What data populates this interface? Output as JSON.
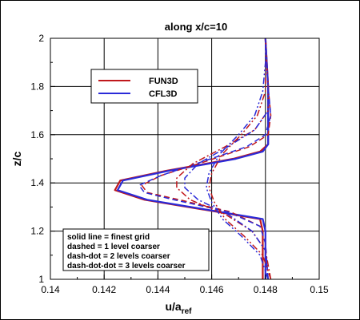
{
  "chart_data": {
    "type": "line",
    "title": "along x/c=10",
    "xlabel": "u/a",
    "xlabel_sub": "ref",
    "ylabel": "z/c",
    "xlim": [
      0.14,
      0.15
    ],
    "ylim": [
      1.0,
      2.0
    ],
    "xticks": [
      "0.14",
      "0.142",
      "0.144",
      "0.146",
      "0.148",
      "0.15"
    ],
    "yticks": [
      "1",
      "1.2",
      "1.4",
      "1.6",
      "1.8",
      "2"
    ],
    "grid": true,
    "legend_position": "upper-left",
    "legend": [
      {
        "name": "FUN3D",
        "color": "#c0181c"
      },
      {
        "name": "CFL3D",
        "color": "#2a2ad8"
      }
    ],
    "note": [
      "solid line = finest grid",
      "dashed = 1 level coarser",
      "dash-dot = 2 levels coarser",
      "dash-dot-dot = 3 levels coarser"
    ],
    "series": [
      {
        "code": "FUN3D",
        "grid": "finest",
        "style": "solid",
        "color": "#c0181c",
        "points": [
          [
            0.1479,
            1.0
          ],
          [
            0.1479,
            1.2
          ],
          [
            0.1478,
            1.25
          ],
          [
            0.1462,
            1.28
          ],
          [
            0.1435,
            1.33
          ],
          [
            0.1424,
            1.37
          ],
          [
            0.1426,
            1.41
          ],
          [
            0.1443,
            1.45
          ],
          [
            0.1468,
            1.5
          ],
          [
            0.1478,
            1.53
          ],
          [
            0.1481,
            1.56
          ],
          [
            0.1481,
            1.65
          ],
          [
            0.1481,
            1.8
          ],
          [
            0.148,
            2.0
          ]
        ]
      },
      {
        "code": "CFL3D",
        "grid": "finest",
        "style": "solid",
        "color": "#2a2ad8",
        "points": [
          [
            0.148,
            1.0
          ],
          [
            0.148,
            1.2
          ],
          [
            0.1479,
            1.25
          ],
          [
            0.1463,
            1.28
          ],
          [
            0.1436,
            1.33
          ],
          [
            0.1425,
            1.37
          ],
          [
            0.1427,
            1.41
          ],
          [
            0.1444,
            1.45
          ],
          [
            0.1469,
            1.5
          ],
          [
            0.1479,
            1.53
          ],
          [
            0.1481,
            1.56
          ],
          [
            0.1481,
            1.65
          ],
          [
            0.1481,
            1.8
          ],
          [
            0.148,
            2.0
          ]
        ]
      },
      {
        "code": "FUN3D",
        "grid": "1 level coarser",
        "style": "dashed",
        "color": "#c0181c",
        "points": [
          [
            0.1481,
            1.0
          ],
          [
            0.148,
            1.15
          ],
          [
            0.1478,
            1.22
          ],
          [
            0.1467,
            1.28
          ],
          [
            0.1448,
            1.33
          ],
          [
            0.1436,
            1.36
          ],
          [
            0.1434,
            1.39
          ],
          [
            0.1441,
            1.43
          ],
          [
            0.1458,
            1.49
          ],
          [
            0.1474,
            1.55
          ],
          [
            0.1481,
            1.6
          ],
          [
            0.1482,
            1.68
          ],
          [
            0.1481,
            1.8
          ],
          [
            0.148,
            2.0
          ]
        ]
      },
      {
        "code": "CFL3D",
        "grid": "1 level coarser",
        "style": "dashed",
        "color": "#2a2ad8",
        "points": [
          [
            0.1481,
            1.0
          ],
          [
            0.148,
            1.15
          ],
          [
            0.1478,
            1.22
          ],
          [
            0.1466,
            1.28
          ],
          [
            0.1446,
            1.33
          ],
          [
            0.1435,
            1.36
          ],
          [
            0.1433,
            1.39
          ],
          [
            0.1441,
            1.43
          ],
          [
            0.1457,
            1.49
          ],
          [
            0.1473,
            1.55
          ],
          [
            0.148,
            1.6
          ],
          [
            0.1482,
            1.68
          ],
          [
            0.1481,
            1.8
          ],
          [
            0.148,
            2.0
          ]
        ]
      },
      {
        "code": "FUN3D",
        "grid": "2 levels coarser",
        "style": "dashdot",
        "color": "#c0181c",
        "points": [
          [
            0.1482,
            1.0
          ],
          [
            0.148,
            1.12
          ],
          [
            0.1475,
            1.2
          ],
          [
            0.1465,
            1.27
          ],
          [
            0.1452,
            1.33
          ],
          [
            0.1447,
            1.38
          ],
          [
            0.1447,
            1.42
          ],
          [
            0.1453,
            1.48
          ],
          [
            0.1465,
            1.55
          ],
          [
            0.1476,
            1.62
          ],
          [
            0.1481,
            1.7
          ],
          [
            0.1481,
            1.8
          ],
          [
            0.148,
            2.0
          ]
        ]
      },
      {
        "code": "CFL3D",
        "grid": "2 levels coarser",
        "style": "dashdot",
        "color": "#2a2ad8",
        "points": [
          [
            0.1481,
            1.0
          ],
          [
            0.148,
            1.12
          ],
          [
            0.1475,
            1.2
          ],
          [
            0.1466,
            1.27
          ],
          [
            0.1455,
            1.33
          ],
          [
            0.145,
            1.38
          ],
          [
            0.145,
            1.42
          ],
          [
            0.1455,
            1.48
          ],
          [
            0.1466,
            1.55
          ],
          [
            0.1476,
            1.62
          ],
          [
            0.1481,
            1.7
          ],
          [
            0.1481,
            1.8
          ],
          [
            0.148,
            2.0
          ]
        ]
      },
      {
        "code": "FUN3D",
        "grid": "3 levels coarser",
        "style": "dashdotdot",
        "color": "#c0181c",
        "points": [
          [
            0.1482,
            1.0
          ],
          [
            0.1479,
            1.1
          ],
          [
            0.1472,
            1.18
          ],
          [
            0.1465,
            1.25
          ],
          [
            0.1461,
            1.32
          ],
          [
            0.1459,
            1.38
          ],
          [
            0.146,
            1.44
          ],
          [
            0.1464,
            1.52
          ],
          [
            0.1471,
            1.6
          ],
          [
            0.1477,
            1.68
          ],
          [
            0.148,
            1.78
          ],
          [
            0.148,
            1.9
          ],
          [
            0.148,
            2.0
          ]
        ]
      },
      {
        "code": "CFL3D",
        "grid": "3 levels coarser",
        "style": "dashdotdot",
        "color": "#2a2ad8",
        "points": [
          [
            0.1481,
            1.0
          ],
          [
            0.1478,
            1.1
          ],
          [
            0.1471,
            1.18
          ],
          [
            0.1464,
            1.25
          ],
          [
            0.146,
            1.32
          ],
          [
            0.1458,
            1.38
          ],
          [
            0.1459,
            1.44
          ],
          [
            0.1463,
            1.52
          ],
          [
            0.147,
            1.6
          ],
          [
            0.1476,
            1.68
          ],
          [
            0.1479,
            1.78
          ],
          [
            0.148,
            1.9
          ],
          [
            0.148,
            2.0
          ]
        ]
      }
    ]
  }
}
